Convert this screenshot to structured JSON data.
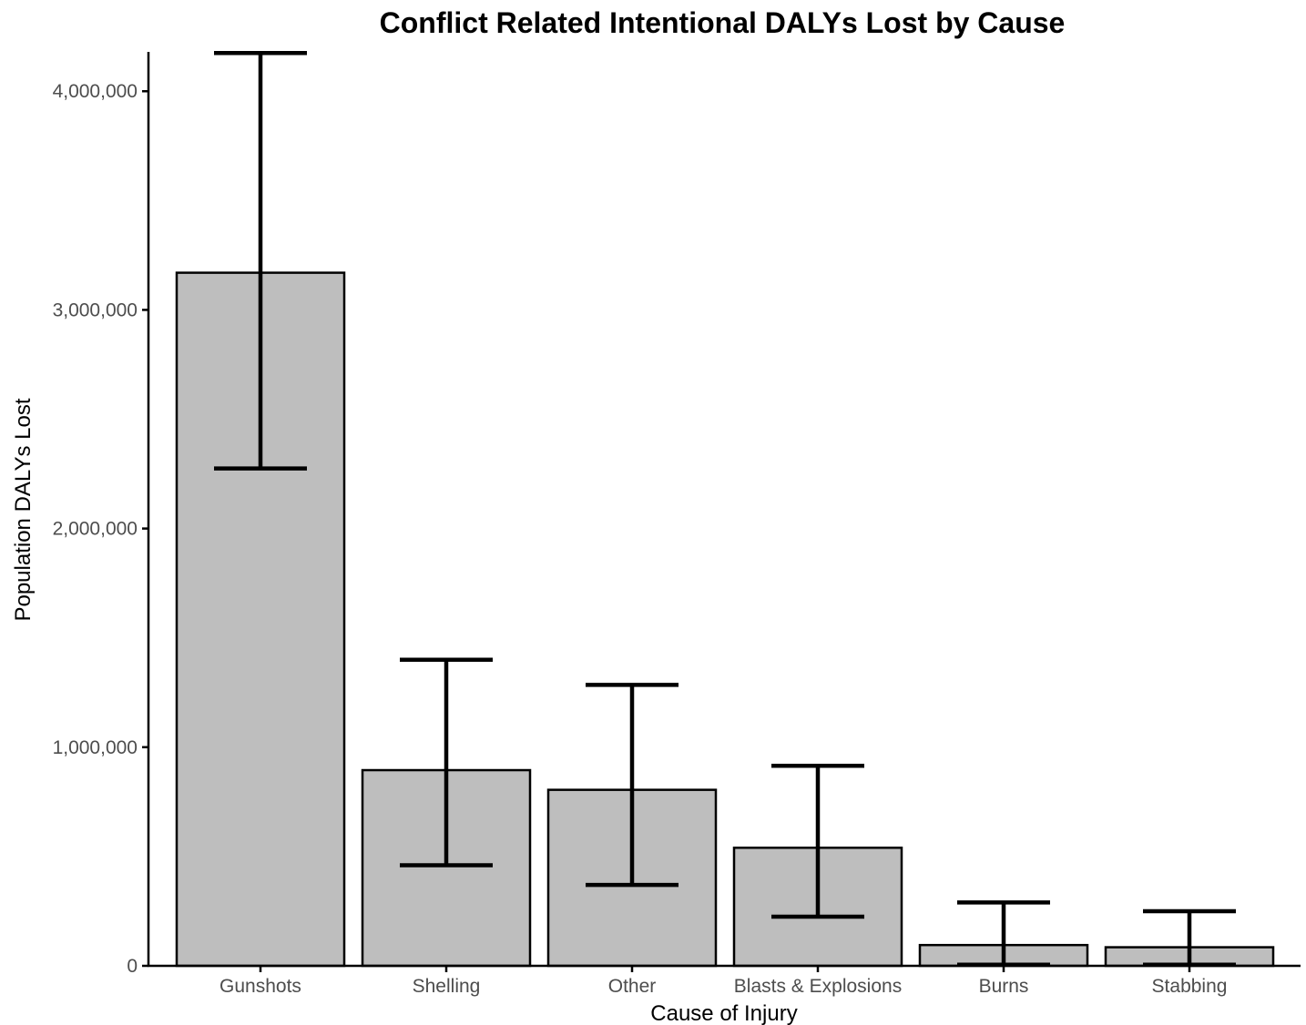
{
  "chart_data": {
    "type": "bar",
    "title": "Conflict Related Intentional DALYs Lost by Cause",
    "xlabel": "Cause of Injury",
    "ylabel": "Population DALYs Lost",
    "categories": [
      "Gunshots",
      "Shelling",
      "Other",
      "Blasts & Explosions",
      "Burns",
      "Stabbing"
    ],
    "values": [
      3170000,
      895000,
      805000,
      540000,
      95000,
      85000
    ],
    "error_low": [
      2275000,
      460000,
      370000,
      225000,
      5000,
      5000
    ],
    "error_high": [
      4175000,
      1400000,
      1285000,
      915000,
      290000,
      250000
    ],
    "ylim": [
      0,
      4180000
    ],
    "yticks": [
      0,
      1000000,
      2000000,
      3000000,
      4000000
    ],
    "ytick_labels": [
      "0",
      "1,000,000",
      "2,000,000",
      "3,000,000",
      "4,000,000"
    ],
    "grid": false,
    "legend": "none",
    "colors": {
      "bar_fill": "#bebebe",
      "bar_stroke": "#000000",
      "errorbar": "#000000",
      "axis": "#000000"
    }
  }
}
